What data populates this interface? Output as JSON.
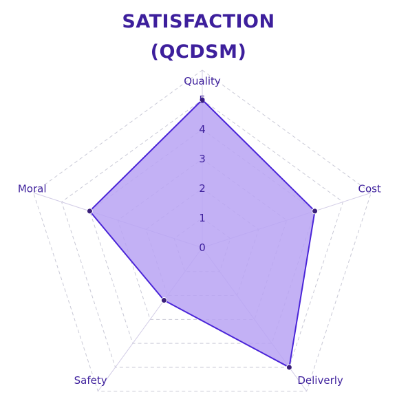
{
  "chart_data": {
    "type": "radar",
    "title_line1": "SATISFACTION",
    "title_line2": "(QCDSM)",
    "categories": [
      "Quality",
      "Cost",
      "Deliverly",
      "Safety",
      "Moral"
    ],
    "ticks": [
      "0",
      "1",
      "2",
      "3",
      "4",
      "5"
    ],
    "rlim": [
      0,
      5
    ],
    "grid": true,
    "series": [
      {
        "values": [
          5,
          4,
          5,
          2.2,
          4
        ]
      }
    ],
    "colors": {
      "line": "#4a24d8",
      "fill": "#b8a3f3",
      "marker": "#3a1f7a",
      "grid": "#c9c9d6",
      "spoke": "#d2cce6"
    }
  }
}
